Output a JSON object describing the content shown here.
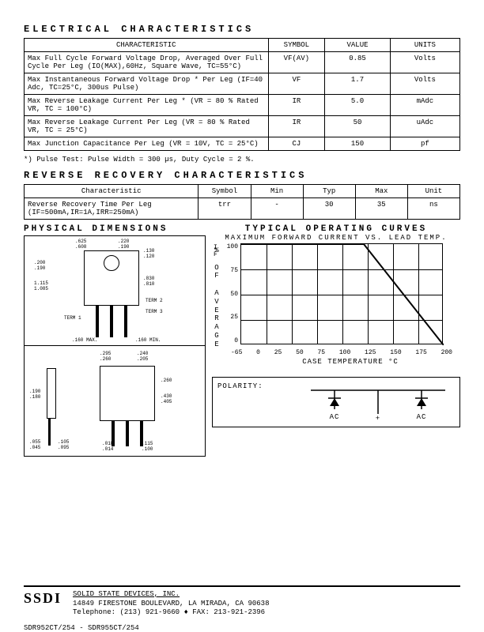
{
  "sections": {
    "elec_title": "ELECTRICAL CHARACTERISTICS",
    "recov_title": "REVERSE RECOVERY CHARACTERISTICS",
    "phys_title": "PHYSICAL DIMENSIONS",
    "curves_title": "TYPICAL OPERATING CURVES",
    "curves_sub": "MAXIMUM FORWARD CURRENT VS. LEAD TEMP."
  },
  "elec_table": {
    "headers": [
      "CHARACTERISTIC",
      "SYMBOL",
      "VALUE",
      "UNITS"
    ],
    "rows": [
      {
        "char": "Max Full Cycle Forward Voltage Drop, Averaged Over Full Cycle Per Leg (IO(MAX),60Hz, Square Wave, TC=55°C)",
        "symbol": "VF(AV)",
        "value": "0.85",
        "units": "Volts"
      },
      {
        "char": "Max Instantaneous Forward Voltage Drop * Per Leg (IF=40 Adc, TC=25°C, 300us Pulse)",
        "symbol": "VF",
        "value": "1.7",
        "units": "Volts"
      },
      {
        "char": "Max Reverse Leakage Current Per Leg * (VR = 80 % Rated VR, TC = 100°C)",
        "symbol": "IR",
        "value": "5.0",
        "units": "mAdc"
      },
      {
        "char": "Max Reverse Leakage Current Per Leg (VR = 80 % Rated VR, TC = 25°C)",
        "symbol": "IR",
        "value": "50",
        "units": "uAdc"
      },
      {
        "char": "Max Junction Capacitance Per Leg (VR = 10V, TC = 25°C)",
        "symbol": "CJ",
        "value": "150",
        "units": "pf"
      }
    ],
    "note": "*) Pulse Test: Pulse Width = 300 µs, Duty Cycle = 2 %."
  },
  "recov_table": {
    "headers": [
      "Characteristic",
      "Symbol",
      "Min",
      "Typ",
      "Max",
      "Unit"
    ],
    "row": {
      "char": "Reverse Recovery Time Per Leg (IF=500mA,IR=1A,IRR=250mA)",
      "symbol": "trr",
      "min": "-",
      "typ": "30",
      "max": "35",
      "unit": "ns"
    }
  },
  "chart": {
    "y_label_chars": [
      "%",
      "",
      "O",
      "F",
      "",
      "A",
      "V",
      "E",
      "R",
      "A",
      "G",
      "E"
    ],
    "y_secondary": "I\nF",
    "y_ticks": [
      "100",
      "75",
      "50",
      "25",
      "0"
    ],
    "x_ticks": [
      "-65",
      "0",
      "25",
      "50",
      "75",
      "100",
      "125",
      "150",
      "175",
      "200"
    ],
    "x_label": "CASE TEMPERATURE °C",
    "line_points": [
      [
        0,
        0
      ],
      [
        155,
        0
      ],
      [
        256,
        128
      ]
    ],
    "grid_v_count": 8,
    "grid_h_count": 4,
    "line_color": "#000000",
    "bg": "#ffffff"
  },
  "polarity": {
    "label": "POLARITY:",
    "terminals": [
      "AC",
      "+",
      "AC"
    ]
  },
  "footer": {
    "logo": "SSDI",
    "company": "SOLID STATE DEVICES, INC.",
    "addr": "14849 FIRESTONE BOULEVARD, LA MIRADA, CA 90638",
    "phone": "Telephone: (213) 921-9660  ♦  FAX: 213-921-2396",
    "parts": "SDR952CT/254 - SDR955CT/254"
  }
}
